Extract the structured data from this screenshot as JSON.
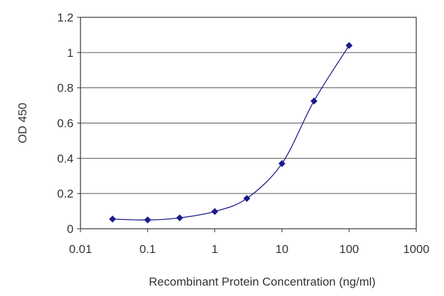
{
  "chart_data": {
    "type": "line",
    "title": "",
    "xlabel": "Recombinant Protein Concentration (ng/ml)",
    "ylabel": "OD 450",
    "x_scale": "log",
    "xlim": [
      0.01,
      1000
    ],
    "ylim": [
      0,
      1.2
    ],
    "x_ticks": [
      0.01,
      0.1,
      1,
      10,
      100,
      1000
    ],
    "x_tick_labels": [
      "0.01",
      "0.1",
      "1",
      "10",
      "100",
      "1000"
    ],
    "y_ticks": [
      0,
      0.2,
      0.4,
      0.6,
      0.8,
      1,
      1.2
    ],
    "y_tick_labels": [
      "0",
      "0.2",
      "0.4",
      "0.6",
      "0.8",
      "1",
      "1.2"
    ],
    "grid": "horizontal",
    "legend": "none",
    "series": [
      {
        "x": [
          0.03,
          0.1,
          0.3,
          1,
          3,
          10,
          30,
          100
        ],
        "y": [
          0.055,
          0.05,
          0.062,
          0.098,
          0.172,
          0.37,
          0.725,
          1.04
        ],
        "color": "#1a1a8c",
        "marker": "diamond"
      }
    ]
  }
}
